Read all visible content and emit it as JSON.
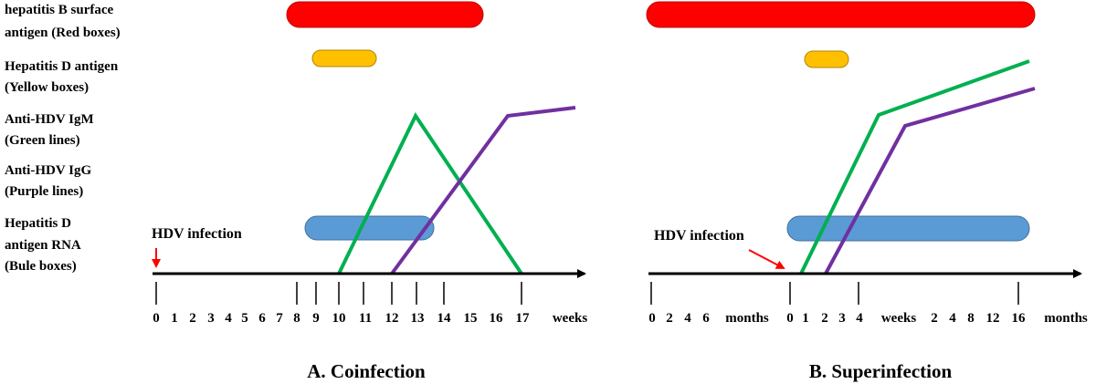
{
  "legend": [
    {
      "line1": "hepatitis B surface",
      "line2": "antigen (Red boxes)"
    },
    {
      "line1": "Hepatitis D antigen",
      "line2": "(Yellow boxes)"
    },
    {
      "line1": "Anti-HDV IgM",
      "line2": "(Green lines)"
    },
    {
      "line1": "Anti-HDV IgG",
      "line2": "(Purple lines)"
    },
    {
      "line1": "Hepatitis D",
      "line2": "antigen RNA",
      "line3": "(Bule boxes)"
    }
  ],
  "colors": {
    "hbsag": "#ff0000",
    "hdag": "#ffc000",
    "igm": "#00b050",
    "igg": "#7030a0",
    "rna": "#5b9bd5",
    "arrow": "#ff0000",
    "axis": "#000000"
  },
  "panel_a": {
    "title": "A. Coinfection",
    "infection_label": "HDV infection",
    "ticks": [
      "0",
      "1",
      "2",
      "3",
      "4",
      "5",
      "6",
      "7",
      "8",
      "9",
      "10",
      "11",
      "12",
      "13",
      "14",
      "15",
      "16",
      "17"
    ],
    "unit": "weeks"
  },
  "panel_b": {
    "title": "B. Superinfection",
    "infection_label": "HDV infection",
    "ticks": [
      "0",
      "2",
      "4",
      "6",
      "months",
      "0",
      "1",
      "2",
      "3",
      "4",
      "weeks",
      "2",
      "4",
      "8",
      "12",
      "16"
    ],
    "unit": "months"
  }
}
